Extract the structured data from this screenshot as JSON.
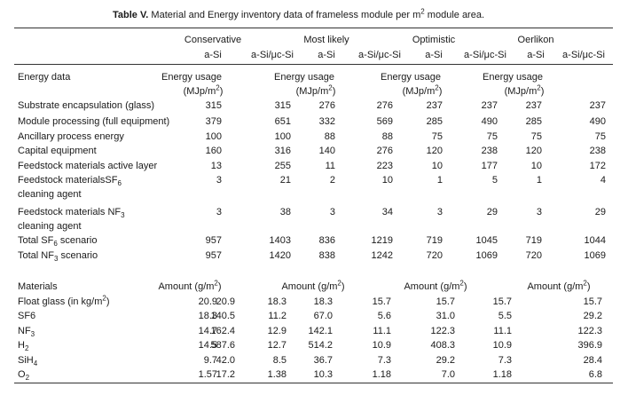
{
  "caption": {
    "label": "Table V.",
    "text_pre": "Material and Energy inventory data of frameless module per m",
    "text_sup": "2",
    "text_post": " module area."
  },
  "header": {
    "groups": [
      "Conservative",
      "Most likely",
      "Optimistic",
      "Oerlikon"
    ],
    "subcolumns": [
      "a-Si",
      "a-Si/μc-Si",
      "a-Si",
      "a-Si/μc-Si",
      "a-Si",
      "a-Si/μc-Si",
      "a-Si",
      "a-Si/μc-Si"
    ]
  },
  "energy": {
    "label": "Energy data",
    "usage_label": "Energy usage",
    "unit_pre": "(MJp/m",
    "unit_sup": "2",
    "unit_post": ")",
    "rows": [
      {
        "name": "Substrate encapsulation (glass)",
        "values": [
          "315",
          "315",
          "276",
          "276",
          "237",
          "237",
          "237",
          "237"
        ]
      },
      {
        "name": "Module processing (full equipment)",
        "values": [
          "379",
          "651",
          "332",
          "569",
          "285",
          "490",
          "285",
          "490"
        ]
      },
      {
        "name": "Ancillary process energy",
        "values": [
          "100",
          "100",
          "88",
          "88",
          "75",
          "75",
          "75",
          "75"
        ]
      },
      {
        "name": "Capital equipment",
        "values": [
          "160",
          "316",
          "140",
          "276",
          "120",
          "238",
          "120",
          "238"
        ]
      },
      {
        "name": "Feedstock materials active layer",
        "values": [
          "13",
          "255",
          "11",
          "223",
          "10",
          "177",
          "10",
          "172"
        ]
      },
      {
        "name_pre": "Feedstock materialsSF",
        "name_sub": "6",
        "name2": "cleaning agent",
        "values": [
          "3",
          "21",
          "2",
          "10",
          "1",
          "5",
          "1",
          "4"
        ]
      },
      {
        "name_pre": "Feedstock materials NF",
        "name_sub": "3",
        "name2": "cleaning agent",
        "values": [
          "3",
          "38",
          "3",
          "34",
          "3",
          "29",
          "3",
          "29"
        ]
      },
      {
        "name_pre": "Total SF",
        "name_sub": "6",
        "name_post": " scenario",
        "values": [
          "957",
          "1403",
          "836",
          "1219",
          "719",
          "1045",
          "719",
          "1044"
        ]
      },
      {
        "name_pre": "Total NF",
        "name_sub": "3",
        "name_post": " scenario",
        "values": [
          "957",
          "1420",
          "838",
          "1242",
          "720",
          "1069",
          "720",
          "1069"
        ]
      }
    ]
  },
  "materials": {
    "label": "Materials",
    "amount_pre": "Amount (g/m",
    "amount_sup": "2",
    "amount_post": ")",
    "rows": [
      {
        "name_pre": "Float glass (in kg/m",
        "name_sup": "2",
        "name_post": ")",
        "values": [
          "20.9",
          "20.9",
          "18.3",
          "18.3",
          "15.7",
          "15.7",
          "15.7",
          "15.7"
        ]
      },
      {
        "name_pre": "SF6",
        "values": [
          "18.3",
          "140.5",
          "11.2",
          "67.0",
          "5.6",
          "31.0",
          "5.5",
          "29.2"
        ]
      },
      {
        "name_pre": "NF",
        "name_sub": "3",
        "values": [
          "14.7",
          "162.4",
          "12.9",
          "142.1",
          "11.1",
          "122.3",
          "11.1",
          "122.3"
        ]
      },
      {
        "name_pre": "H",
        "name_sub": "2",
        "values": [
          "14.5",
          "587.6",
          "12.7",
          "514.2",
          "10.9",
          "408.3",
          "10.9",
          "396.9"
        ]
      },
      {
        "name_pre": "SiH",
        "name_sub": "4",
        "values": [
          "9.7",
          "42.0",
          "8.5",
          "36.7",
          "7.3",
          "29.2",
          "7.3",
          "28.4"
        ]
      },
      {
        "name_pre": "O",
        "name_sub": "2",
        "values": [
          "1.57",
          "17.2",
          "1.38",
          "10.3",
          "1.18",
          "7.0",
          "1.18",
          "6.8"
        ]
      }
    ]
  }
}
